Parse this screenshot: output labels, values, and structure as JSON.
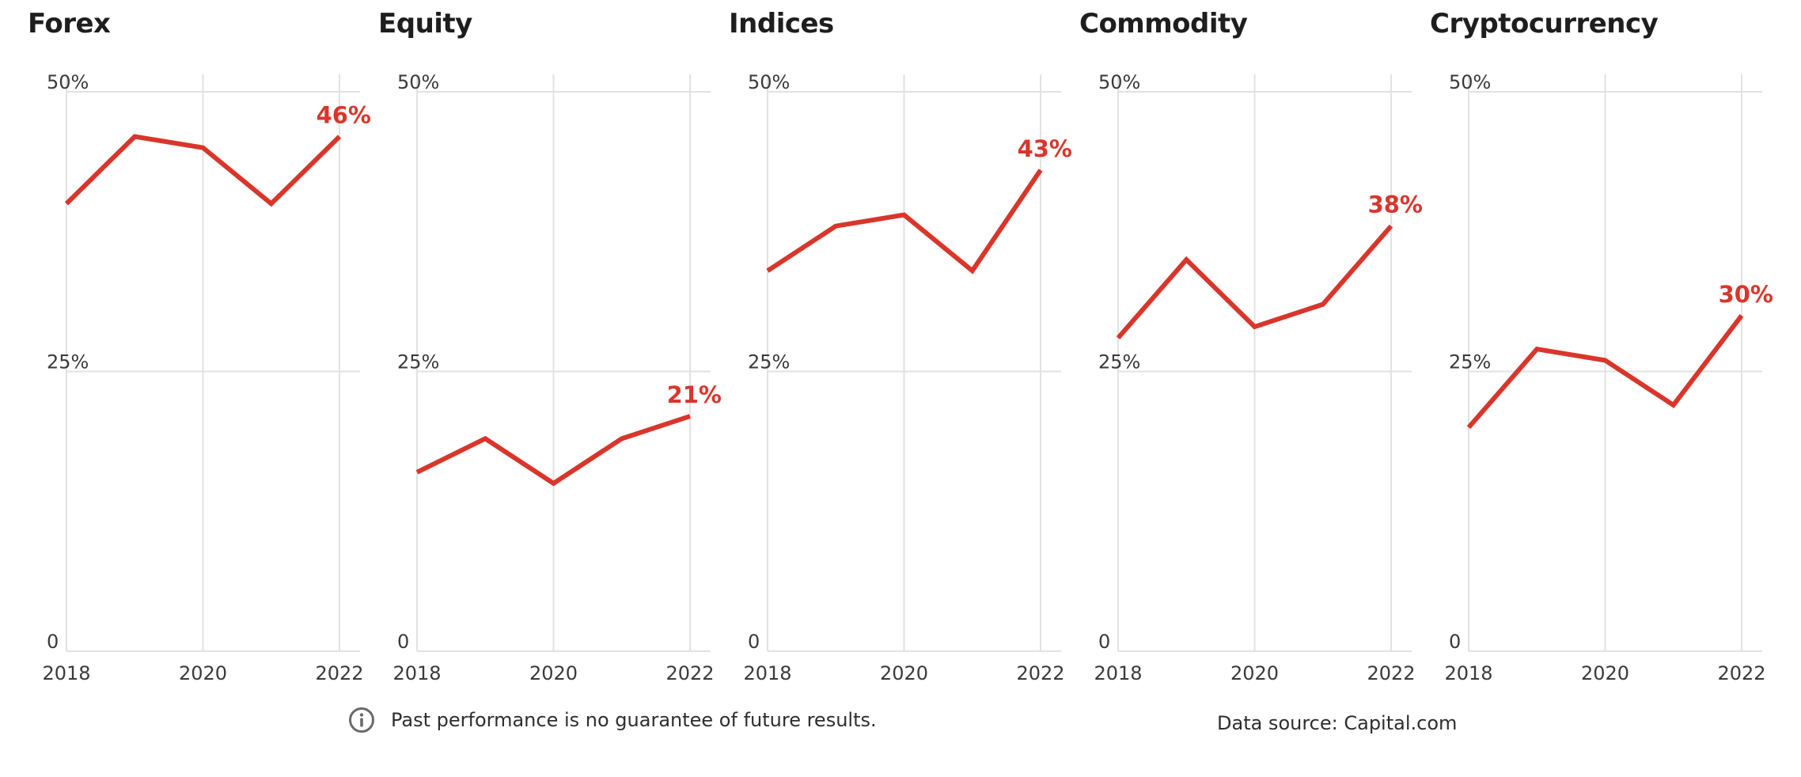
{
  "footer": {
    "note": "Past performance is no guarantee of future results.",
    "source": "Data source: Capital.com",
    "note_icon": "info-icon"
  },
  "colors": {
    "line": "#d9362b",
    "grid": "#e2e2e2",
    "text": "#1e1e1e"
  },
  "chart_data": [
    {
      "type": "line",
      "title": "Forex",
      "x": [
        2018,
        2019,
        2020,
        2021,
        2022
      ],
      "y": [
        40,
        46,
        45,
        40,
        46
      ],
      "end_label": "46%",
      "ylim": [
        0,
        50
      ],
      "yticks": [
        "0",
        "25%",
        "50%"
      ],
      "xticks": [
        "2018",
        "2020",
        "2022"
      ],
      "grid": true
    },
    {
      "type": "line",
      "title": "Equity",
      "x": [
        2018,
        2019,
        2020,
        2021,
        2022
      ],
      "y": [
        16,
        19,
        15,
        19,
        21
      ],
      "end_label": "21%",
      "ylim": [
        0,
        50
      ],
      "yticks": [
        "0",
        "25%",
        "50%"
      ],
      "xticks": [
        "2018",
        "2020",
        "2022"
      ],
      "grid": true
    },
    {
      "type": "line",
      "title": "Indices",
      "x": [
        2018,
        2019,
        2020,
        2021,
        2022
      ],
      "y": [
        34,
        38,
        39,
        34,
        43
      ],
      "end_label": "43%",
      "ylim": [
        0,
        50
      ],
      "yticks": [
        "0",
        "25%",
        "50%"
      ],
      "xticks": [
        "2018",
        "2020",
        "2022"
      ],
      "grid": true
    },
    {
      "type": "line",
      "title": "Commodity",
      "x": [
        2018,
        2019,
        2020,
        2021,
        2022
      ],
      "y": [
        28,
        35,
        29,
        31,
        38
      ],
      "end_label": "38%",
      "ylim": [
        0,
        50
      ],
      "yticks": [
        "0",
        "25%",
        "50%"
      ],
      "xticks": [
        "2018",
        "2020",
        "2022"
      ],
      "grid": true
    },
    {
      "type": "line",
      "title": "Cryptocurrency",
      "x": [
        2018,
        2019,
        2020,
        2021,
        2022
      ],
      "y": [
        20,
        27,
        26,
        22,
        30
      ],
      "end_label": "30%",
      "ylim": [
        0,
        50
      ],
      "yticks": [
        "0",
        "25%",
        "50%"
      ],
      "xticks": [
        "2018",
        "2020",
        "2022"
      ],
      "grid": true
    }
  ]
}
